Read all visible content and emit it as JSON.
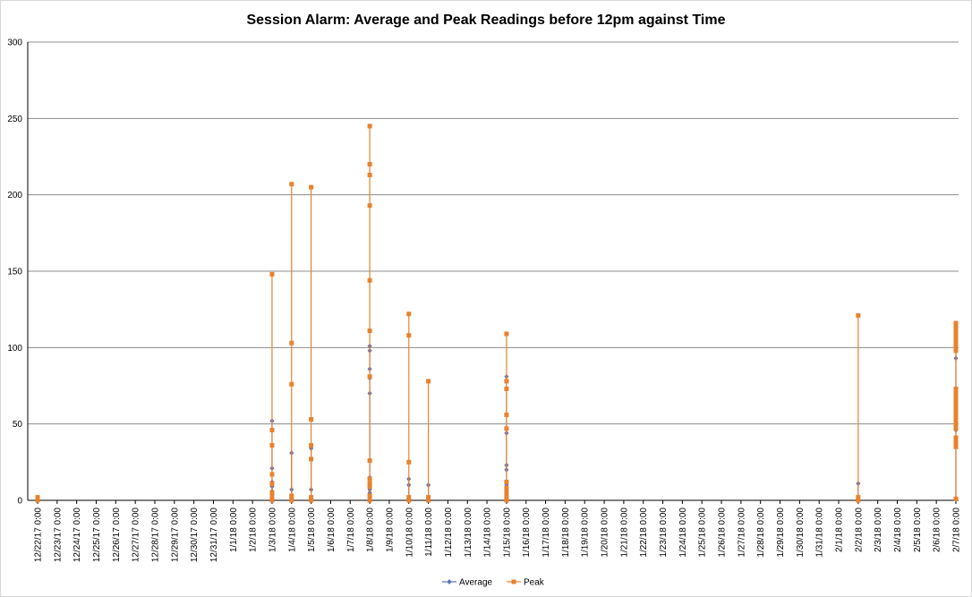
{
  "chart_data": {
    "type": "line",
    "title": "Session Alarm: Average and Peak Readings before 12pm against Time",
    "xlabel": "",
    "ylabel": "",
    "ylim": [
      0,
      300
    ],
    "yticks": [
      "0",
      "50",
      "100",
      "150",
      "200",
      "250",
      "300"
    ],
    "categories": [
      "12/22/17 0:00",
      "12/23/17 0:00",
      "12/24/17 0:00",
      "12/25/17 0:00",
      "12/26/17 0:00",
      "12/27/17 0:00",
      "12/28/17 0:00",
      "12/29/17 0:00",
      "12/30/17 0:00",
      "12/31/17 0:00",
      "1/1/18 0:00",
      "1/2/18 0:00",
      "1/3/18 0:00",
      "1/4/18 0:00",
      "1/5/18 0:00",
      "1/6/18 0:00",
      "1/7/18 0:00",
      "1/8/18 0:00",
      "1/9/18 0:00",
      "1/10/18 0:00",
      "1/11/18 0:00",
      "1/12/18 0:00",
      "1/13/18 0:00",
      "1/14/18 0:00",
      "1/15/18 0:00",
      "1/16/18 0:00",
      "1/17/18 0:00",
      "1/18/18 0:00",
      "1/19/18 0:00",
      "1/20/18 0:00",
      "1/21/18 0:00",
      "1/22/18 0:00",
      "1/23/18 0:00",
      "1/24/18 0:00",
      "1/25/18 0:00",
      "1/26/18 0:00",
      "1/27/18 0:00",
      "1/28/18 0:00",
      "1/29/18 0:00",
      "1/30/18 0:00",
      "1/31/18 0:00",
      "2/1/18 0:00",
      "2/2/18 0:00",
      "2/3/18 0:00",
      "2/4/18 0:00",
      "2/5/18 0:00",
      "2/6/18 0:00",
      "2/7/18 0:00"
    ],
    "grid": "horizontal",
    "legend_position": "bottom",
    "series": [
      {
        "name": "Average",
        "color": "#5B6FB5",
        "marker": "diamond",
        "points": [
          {
            "x": "12/22/17 0:00",
            "y": 1
          },
          {
            "x": "1/3/18 0:00",
            "y": 52
          },
          {
            "x": "1/3/18 0:00",
            "y": 21
          },
          {
            "x": "1/3/18 0:00",
            "y": 12
          },
          {
            "x": "1/3/18 0:00",
            "y": 9
          },
          {
            "x": "1/3/18 0:00",
            "y": 6
          },
          {
            "x": "1/3/18 0:00",
            "y": 4
          },
          {
            "x": "1/3/18 0:00",
            "y": 2
          },
          {
            "x": "1/4/18 0:00",
            "y": 31
          },
          {
            "x": "1/4/18 0:00",
            "y": 7
          },
          {
            "x": "1/4/18 0:00",
            "y": 3
          },
          {
            "x": "1/4/18 0:00",
            "y": 1
          },
          {
            "x": "1/5/18 0:00",
            "y": 35
          },
          {
            "x": "1/5/18 0:00",
            "y": 34
          },
          {
            "x": "1/5/18 0:00",
            "y": 7
          },
          {
            "x": "1/5/18 0:00",
            "y": 1
          },
          {
            "x": "1/8/18 0:00",
            "y": 101
          },
          {
            "x": "1/8/18 0:00",
            "y": 98
          },
          {
            "x": "1/8/18 0:00",
            "y": 86
          },
          {
            "x": "1/8/18 0:00",
            "y": 80
          },
          {
            "x": "1/8/18 0:00",
            "y": 70
          },
          {
            "x": "1/8/18 0:00",
            "y": 15
          },
          {
            "x": "1/8/18 0:00",
            "y": 7
          },
          {
            "x": "1/8/18 0:00",
            "y": 5
          },
          {
            "x": "1/8/18 0:00",
            "y": 2
          },
          {
            "x": "1/10/18 0:00",
            "y": 14
          },
          {
            "x": "1/10/18 0:00",
            "y": 10
          },
          {
            "x": "1/10/18 0:00",
            "y": 1
          },
          {
            "x": "1/11/18 0:00",
            "y": 10
          },
          {
            "x": "1/11/18 0:00",
            "y": 1
          },
          {
            "x": "1/15/18 0:00",
            "y": 81
          },
          {
            "x": "1/15/18 0:00",
            "y": 44
          },
          {
            "x": "1/15/18 0:00",
            "y": 23
          },
          {
            "x": "1/15/18 0:00",
            "y": 20
          },
          {
            "x": "1/15/18 0:00",
            "y": 10
          },
          {
            "x": "1/15/18 0:00",
            "y": 6
          },
          {
            "x": "1/15/18 0:00",
            "y": 3
          },
          {
            "x": "1/15/18 0:00",
            "y": 1
          },
          {
            "x": "2/2/18 0:00",
            "y": 11
          },
          {
            "x": "2/2/18 0:00",
            "y": 1
          },
          {
            "x": "2/7/18 0:00",
            "y": 112
          },
          {
            "x": "2/7/18 0:00",
            "y": 108
          },
          {
            "x": "2/7/18 0:00",
            "y": 100
          },
          {
            "x": "2/7/18 0:00",
            "y": 93
          },
          {
            "x": "2/7/18 0:00",
            "y": 70
          },
          {
            "x": "2/7/18 0:00",
            "y": 65
          },
          {
            "x": "2/7/18 0:00",
            "y": 60
          },
          {
            "x": "2/7/18 0:00",
            "y": 55
          },
          {
            "x": "2/7/18 0:00",
            "y": 50
          },
          {
            "x": "2/7/18 0:00",
            "y": 46
          },
          {
            "x": "2/7/18 0:00",
            "y": 40
          },
          {
            "x": "2/7/18 0:00",
            "y": 35
          },
          {
            "x": "2/7/18 0:00",
            "y": 1
          }
        ]
      },
      {
        "name": "Peak",
        "color": "#E8822E",
        "marker": "square",
        "points": [
          {
            "x": "12/22/17 0:00",
            "y": 2
          },
          {
            "x": "12/22/17 0:00",
            "y": 0
          },
          {
            "x": "1/3/18 0:00",
            "y": 148
          },
          {
            "x": "1/3/18 0:00",
            "y": 46
          },
          {
            "x": "1/3/18 0:00",
            "y": 36
          },
          {
            "x": "1/3/18 0:00",
            "y": 17
          },
          {
            "x": "1/3/18 0:00",
            "y": 11
          },
          {
            "x": "1/3/18 0:00",
            "y": 5
          },
          {
            "x": "1/3/18 0:00",
            "y": 2
          },
          {
            "x": "1/3/18 0:00",
            "y": 0
          },
          {
            "x": "1/4/18 0:00",
            "y": 207
          },
          {
            "x": "1/4/18 0:00",
            "y": 103
          },
          {
            "x": "1/4/18 0:00",
            "y": 76
          },
          {
            "x": "1/4/18 0:00",
            "y": 3
          },
          {
            "x": "1/4/18 0:00",
            "y": 1
          },
          {
            "x": "1/4/18 0:00",
            "y": 0
          },
          {
            "x": "1/5/18 0:00",
            "y": 205
          },
          {
            "x": "1/5/18 0:00",
            "y": 53
          },
          {
            "x": "1/5/18 0:00",
            "y": 36
          },
          {
            "x": "1/5/18 0:00",
            "y": 27
          },
          {
            "x": "1/5/18 0:00",
            "y": 2
          },
          {
            "x": "1/5/18 0:00",
            "y": 0
          },
          {
            "x": "1/8/18 0:00",
            "y": 245
          },
          {
            "x": "1/8/18 0:00",
            "y": 220
          },
          {
            "x": "1/8/18 0:00",
            "y": 213
          },
          {
            "x": "1/8/18 0:00",
            "y": 193
          },
          {
            "x": "1/8/18 0:00",
            "y": 144
          },
          {
            "x": "1/8/18 0:00",
            "y": 111
          },
          {
            "x": "1/8/18 0:00",
            "y": 81
          },
          {
            "x": "1/8/18 0:00",
            "y": 26
          },
          {
            "x": "1/8/18 0:00",
            "y": 14
          },
          {
            "x": "1/8/18 0:00",
            "y": 11
          },
          {
            "x": "1/8/18 0:00",
            "y": 9
          },
          {
            "x": "1/8/18 0:00",
            "y": 3
          },
          {
            "x": "1/8/18 0:00",
            "y": 0
          },
          {
            "x": "1/10/18 0:00",
            "y": 122
          },
          {
            "x": "1/10/18 0:00",
            "y": 108
          },
          {
            "x": "1/10/18 0:00",
            "y": 25
          },
          {
            "x": "1/10/18 0:00",
            "y": 2
          },
          {
            "x": "1/10/18 0:00",
            "y": 0
          },
          {
            "x": "1/11/18 0:00",
            "y": 78
          },
          {
            "x": "1/11/18 0:00",
            "y": 2
          },
          {
            "x": "1/11/18 0:00",
            "y": 0
          },
          {
            "x": "1/15/18 0:00",
            "y": 109
          },
          {
            "x": "1/15/18 0:00",
            "y": 78
          },
          {
            "x": "1/15/18 0:00",
            "y": 73
          },
          {
            "x": "1/15/18 0:00",
            "y": 56
          },
          {
            "x": "1/15/18 0:00",
            "y": 47
          },
          {
            "x": "1/15/18 0:00",
            "y": 12
          },
          {
            "x": "1/15/18 0:00",
            "y": 8
          },
          {
            "x": "1/15/18 0:00",
            "y": 5
          },
          {
            "x": "1/15/18 0:00",
            "y": 2
          },
          {
            "x": "1/15/18 0:00",
            "y": 0
          },
          {
            "x": "2/2/18 0:00",
            "y": 121
          },
          {
            "x": "2/2/18 0:00",
            "y": 2
          },
          {
            "x": "2/2/18 0:00",
            "y": 0
          },
          {
            "x": "2/7/18 0:00",
            "y": 116
          },
          {
            "x": "2/7/18 0:00",
            "y": 114
          },
          {
            "x": "2/7/18 0:00",
            "y": 112
          },
          {
            "x": "2/7/18 0:00",
            "y": 110
          },
          {
            "x": "2/7/18 0:00",
            "y": 108
          },
          {
            "x": "2/7/18 0:00",
            "y": 106
          },
          {
            "x": "2/7/18 0:00",
            "y": 104
          },
          {
            "x": "2/7/18 0:00",
            "y": 102
          },
          {
            "x": "2/7/18 0:00",
            "y": 100
          },
          {
            "x": "2/7/18 0:00",
            "y": 98
          },
          {
            "x": "2/7/18 0:00",
            "y": 73
          },
          {
            "x": "2/7/18 0:00",
            "y": 71
          },
          {
            "x": "2/7/18 0:00",
            "y": 69
          },
          {
            "x": "2/7/18 0:00",
            "y": 67
          },
          {
            "x": "2/7/18 0:00",
            "y": 65
          },
          {
            "x": "2/7/18 0:00",
            "y": 63
          },
          {
            "x": "2/7/18 0:00",
            "y": 61
          },
          {
            "x": "2/7/18 0:00",
            "y": 59
          },
          {
            "x": "2/7/18 0:00",
            "y": 57
          },
          {
            "x": "2/7/18 0:00",
            "y": 55
          },
          {
            "x": "2/7/18 0:00",
            "y": 53
          },
          {
            "x": "2/7/18 0:00",
            "y": 51
          },
          {
            "x": "2/7/18 0:00",
            "y": 49
          },
          {
            "x": "2/7/18 0:00",
            "y": 47
          },
          {
            "x": "2/7/18 0:00",
            "y": 41
          },
          {
            "x": "2/7/18 0:00",
            "y": 39
          },
          {
            "x": "2/7/18 0:00",
            "y": 37
          },
          {
            "x": "2/7/18 0:00",
            "y": 35
          },
          {
            "x": "2/7/18 0:00",
            "y": 1
          }
        ]
      }
    ]
  }
}
